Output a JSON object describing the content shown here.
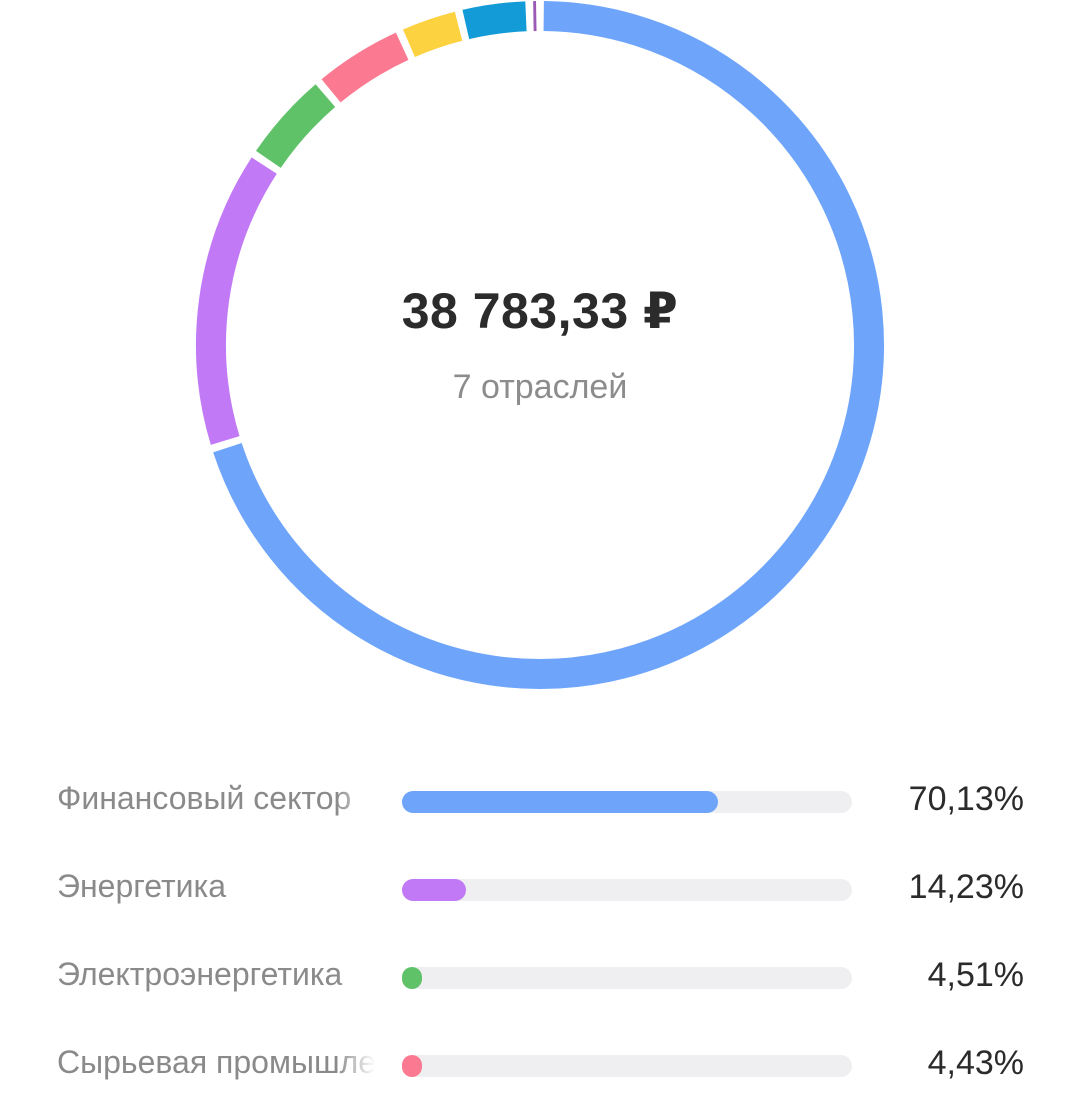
{
  "summary": {
    "total": "38 783,33 ₽",
    "caption": "7 отраслей"
  },
  "chart_data": {
    "type": "pie",
    "subtype": "donut",
    "segments": [
      {
        "name": "Финансовый сектор",
        "value": 70.13,
        "color": "#6ea5fb"
      },
      {
        "name": "Энергетика",
        "value": 14.23,
        "color": "#c179f6"
      },
      {
        "name": "Электроэнергетика",
        "value": 4.51,
        "color": "#5fc268"
      },
      {
        "name": "Сырьевая промышленность",
        "value": 4.43,
        "color": "#fb7a91"
      },
      {
        "segment": 5,
        "value": 2.9,
        "color": "#fdd240"
      },
      {
        "segment": 6,
        "value": 3.3,
        "color": "#129bd6"
      },
      {
        "segment": 7,
        "value": 0.5,
        "color": "#9b59b6"
      }
    ]
  },
  "sectors": [
    {
      "label": "Финансовый сектор",
      "percent": "70,13%",
      "value": 70.13,
      "color": "#6ea5fb"
    },
    {
      "label": "Энергетика",
      "percent": "14,23%",
      "value": 14.23,
      "color": "#c179f6"
    },
    {
      "label": "Электроэнергетика",
      "percent": "4,51%",
      "value": 4.51,
      "color": "#5fc268"
    },
    {
      "label": "Сырьевая промышленность",
      "percent": "4,43%",
      "value": 4.43,
      "color": "#fb7a91"
    }
  ]
}
